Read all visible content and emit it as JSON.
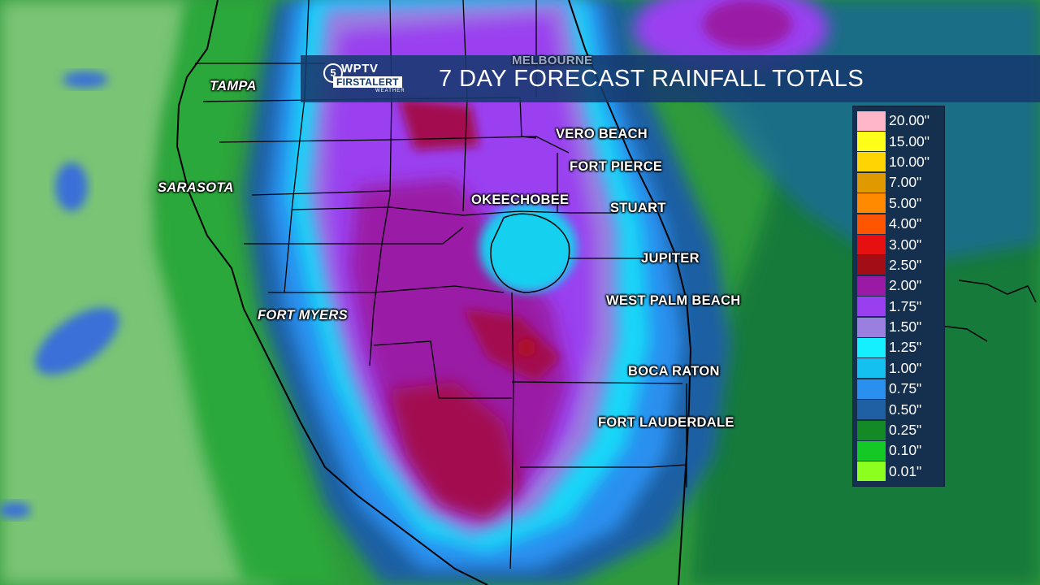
{
  "title_bar": {
    "logo": {
      "icon": "wptv-logo-icon",
      "ring_text": "5",
      "brand": "WPTV",
      "line2": "FIRSTALERT",
      "line3": "WEATHER"
    },
    "title": "7 DAY FORECAST RAINFALL TOTALS"
  },
  "cities": [
    {
      "id": "melbourne",
      "label": "MELBOURNE"
    },
    {
      "id": "tampa",
      "label": "TAMPA"
    },
    {
      "id": "vero-beach",
      "label": "VERO BEACH"
    },
    {
      "id": "fort-pierce",
      "label": "FORT PIERCE"
    },
    {
      "id": "sarasota",
      "label": "SARASOTA"
    },
    {
      "id": "okeechobee",
      "label": "OKEECHOBEE"
    },
    {
      "id": "stuart",
      "label": "STUART"
    },
    {
      "id": "jupiter",
      "label": "JUPITER"
    },
    {
      "id": "fort-myers",
      "label": "FORT MYERS"
    },
    {
      "id": "west-palm-beach",
      "label": "WEST PALM BEACH"
    },
    {
      "id": "boca-raton",
      "label": "BOCA RATON"
    },
    {
      "id": "fort-lauderdale",
      "label": "FORT LAUDERDALE"
    }
  ],
  "legend": [
    {
      "label": "20.00\"",
      "color": "#ffb6c8"
    },
    {
      "label": "15.00\"",
      "color": "#ffff1a"
    },
    {
      "label": "10.00\"",
      "color": "#ffd400"
    },
    {
      "label": "7.00\"",
      "color": "#e09a00"
    },
    {
      "label": "5.00\"",
      "color": "#ff8a00"
    },
    {
      "label": "4.00\"",
      "color": "#ff5500"
    },
    {
      "label": "3.00\"",
      "color": "#e61010"
    },
    {
      "label": "2.50\"",
      "color": "#a30d16"
    },
    {
      "label": "2.00\"",
      "color": "#9a1aa6"
    },
    {
      "label": "1.75\"",
      "color": "#9a3ff0"
    },
    {
      "label": "1.50\"",
      "color": "#9a7ee0"
    },
    {
      "label": "1.25\"",
      "color": "#14f0ff"
    },
    {
      "label": "1.00\"",
      "color": "#14c0f0"
    },
    {
      "label": "0.75\"",
      "color": "#2a90f0"
    },
    {
      "label": "0.50\"",
      "color": "#1f5fa3"
    },
    {
      "label": "0.25\"",
      "color": "#138a26"
    },
    {
      "label": "0.10\"",
      "color": "#14c826"
    },
    {
      "label": "0.01\"",
      "color": "#8cff1e"
    }
  ],
  "colors": {
    "land_base": "#2e8f3a",
    "gulf": "#6fbf6a",
    "light_sea": "#80c880"
  }
}
